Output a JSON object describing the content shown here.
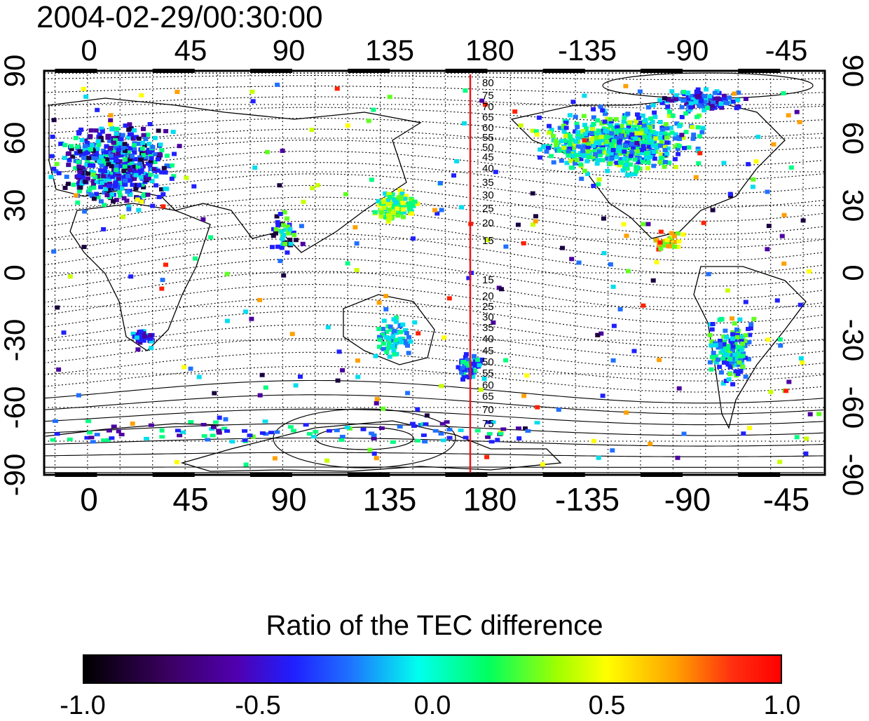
{
  "title": "2004-02-29/00:30:00",
  "axes": {
    "x_ticks_top": [
      "0",
      "45",
      "90",
      "135",
      "180",
      "-135",
      "-90",
      "-45"
    ],
    "x_ticks_bottom": [
      "0",
      "45",
      "90",
      "135",
      "180",
      "-135",
      "-90",
      "-45"
    ],
    "y_ticks_left": [
      "90",
      "60",
      "30",
      "0",
      "-30",
      "-60",
      "-90"
    ],
    "y_ticks_right": [
      "90",
      "60",
      "30",
      "0",
      "-30",
      "-60",
      "-90"
    ]
  },
  "contour_labels_north": [
    "80",
    "75",
    "70",
    "65",
    "60",
    "55",
    "50",
    "45",
    "40",
    "35",
    "30",
    "25",
    "20",
    "15"
  ],
  "contour_labels_south": [
    "15",
    "20",
    "25",
    "30",
    "35",
    "40",
    "45",
    "50",
    "55",
    "60",
    "65",
    "70",
    "75"
  ],
  "colors": {
    "red_line": "#e8141c",
    "frame": "#000000"
  },
  "colorbar": {
    "title": "Ratio of the TEC difference",
    "ticks": [
      "-1.0",
      "-0.5",
      "0.0",
      "0.5",
      "1.0"
    ],
    "range": [
      -1.0,
      1.0
    ]
  }
}
